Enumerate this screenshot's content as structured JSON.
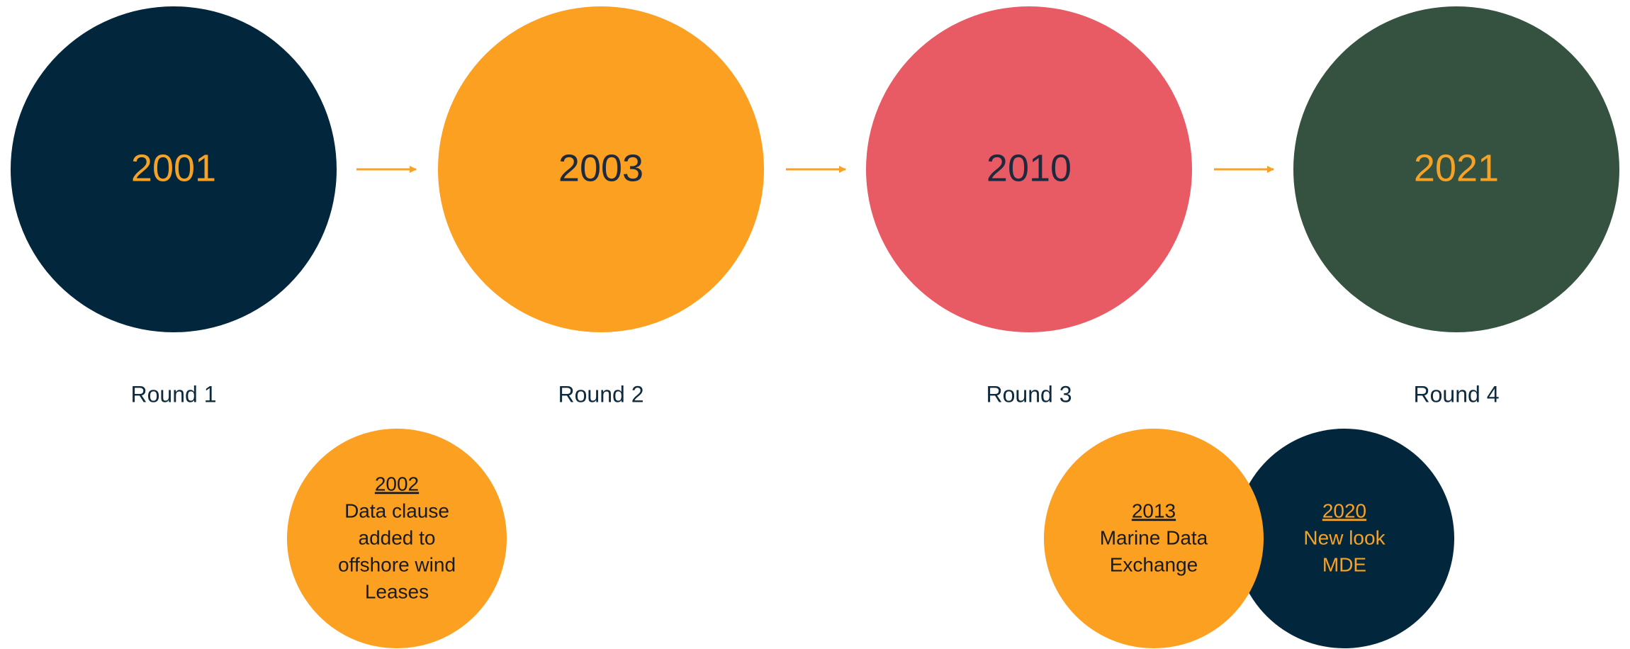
{
  "rounds": [
    {
      "year": "2001",
      "label": "Round 1",
      "color": "#02263c",
      "text_color": "#f6a226"
    },
    {
      "year": "2003",
      "label": "Round 2",
      "color": "#fba021",
      "text_color": "#1d2a3e"
    },
    {
      "year": "2010",
      "label": "Round 3",
      "color": "#e85a64",
      "text_color": "#1d2a3e"
    },
    {
      "year": "2021",
      "label": "Round 4",
      "color": "#355241",
      "text_color": "#f6a226"
    }
  ],
  "milestones": [
    {
      "year": "2002",
      "lines": [
        "Data clause",
        "added to",
        "offshore wind",
        "Leases"
      ],
      "color": "#fba021",
      "text_color": "#1a1a1a"
    },
    {
      "year": "2013",
      "lines": [
        "Marine Data",
        "Exchange"
      ],
      "color": "#fba021",
      "text_color": "#1a1a1a"
    },
    {
      "year": "2020",
      "lines": [
        "New look",
        "MDE"
      ],
      "color": "#02263c",
      "text_color": "#f6a226"
    }
  ]
}
